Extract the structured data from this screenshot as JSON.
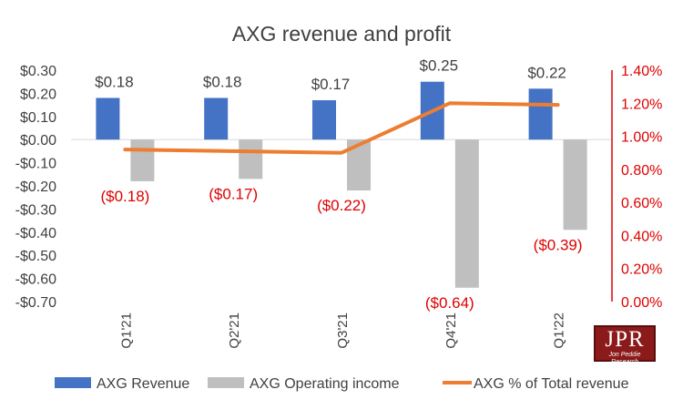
{
  "chart_data": {
    "type": "bar+line",
    "title": "AXG revenue and profit",
    "categories": [
      "Q1'21",
      "Q2'21",
      "Q3'21",
      "Q4'21",
      "Q1'22"
    ],
    "series": [
      {
        "name": "AXG Revenue",
        "type": "bar",
        "axis": "left",
        "color": "#4472c4",
        "values": [
          0.18,
          0.18,
          0.17,
          0.25,
          0.22
        ],
        "labels": [
          "$0.18",
          "$0.18",
          "$0.17",
          "$0.25",
          "$0.22"
        ]
      },
      {
        "name": "AXG Operating income",
        "type": "bar",
        "axis": "left",
        "color": "#bfbfbf",
        "values": [
          -0.18,
          -0.17,
          -0.22,
          -0.64,
          -0.39
        ],
        "labels": [
          "($0.18)",
          "($0.17)",
          "($0.22)",
          "($0.64)",
          "($0.39)"
        ]
      },
      {
        "name": "AXG % of Total revenue",
        "type": "line",
        "axis": "right",
        "color": "#ed7d31",
        "values": [
          0.0092,
          0.0091,
          0.009,
          0.012,
          0.0119
        ]
      }
    ],
    "left_axis": {
      "min": -0.7,
      "max": 0.3,
      "ticks": [
        0.3,
        0.2,
        0.1,
        0.0,
        -0.1,
        -0.2,
        -0.3,
        -0.4,
        -0.5,
        -0.6,
        -0.7
      ],
      "tick_labels": [
        "$0.30",
        "$0.20",
        "$0.10",
        "$0.00",
        "-$0.10",
        "-$0.20",
        "-$0.30",
        "-$0.40",
        "-$0.50",
        "-$0.60",
        "-$0.70"
      ]
    },
    "right_axis": {
      "min": 0.0,
      "max": 0.014,
      "color": "#e00000",
      "ticks": [
        0.014,
        0.012,
        0.01,
        0.008,
        0.006,
        0.004,
        0.002,
        0.0
      ],
      "tick_labels": [
        "1.40%",
        "1.20%",
        "1.00%",
        "0.80%",
        "0.60%",
        "0.40%",
        "0.20%",
        "0.00%"
      ]
    },
    "grid": false,
    "legend_position": "bottom"
  },
  "logo": {
    "text": "JPR",
    "subtext": "Jon Peddie Research"
  }
}
